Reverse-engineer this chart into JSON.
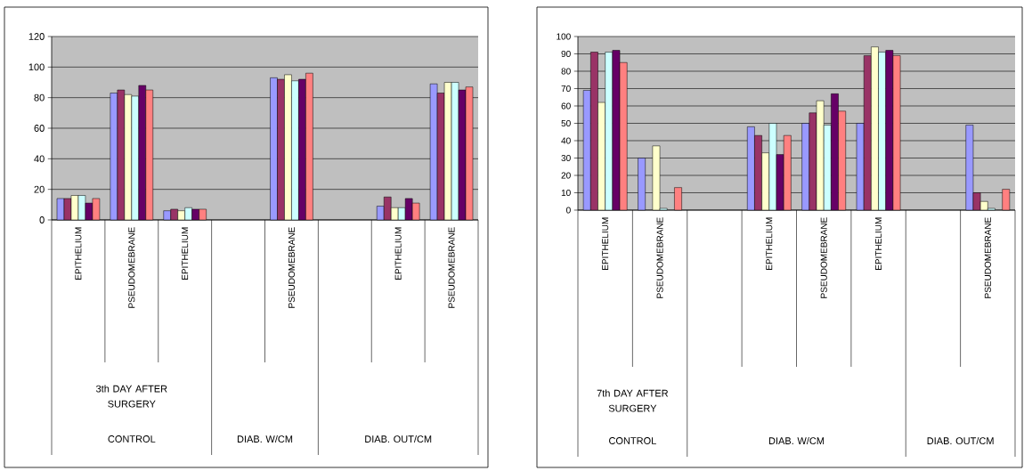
{
  "chart_data": [
    {
      "type": "bar",
      "categories": [
        "EPITHELIUM",
        "PSEUDOMEBRANE",
        "EPITHELIUM",
        null,
        "PSEUDOMEBRANE",
        null,
        "EPITHELIUM",
        "PSEUDOMEBRANE"
      ],
      "series": [
        {
          "color": "#9999ff",
          "values": [
            14,
            83,
            6,
            null,
            93,
            null,
            9,
            89
          ]
        },
        {
          "color": "#993366",
          "values": [
            14,
            85,
            7,
            null,
            92,
            null,
            15,
            83
          ]
        },
        {
          "color": "#ffffcc",
          "values": [
            16,
            82,
            6,
            null,
            95,
            null,
            8,
            90
          ]
        },
        {
          "color": "#ccffff",
          "values": [
            16,
            81,
            8,
            null,
            91,
            null,
            8,
            90
          ]
        },
        {
          "color": "#660066",
          "values": [
            11,
            88,
            7,
            null,
            92,
            null,
            14,
            85
          ]
        },
        {
          "color": "#ff8080",
          "values": [
            14,
            85,
            7,
            null,
            96,
            null,
            11,
            87
          ]
        }
      ],
      "ylim": [
        0,
        120
      ],
      "yticks": [
        0,
        20,
        40,
        60,
        80,
        100,
        120
      ],
      "grid": "y",
      "annotations": [
        "3th DAY AFTER SURGERY",
        "CONTROL",
        "DIAB. W/CM",
        "DIAB. OUT/CM"
      ]
    },
    {
      "type": "bar",
      "categories": [
        "EPITHELIUM",
        "PSEUDOMEBRANE",
        null,
        "EPITHELIUM",
        "PSEUDOMEBRANE",
        "EPITHELIUM",
        null,
        "PSEUDOMEBRANE"
      ],
      "series": [
        {
          "color": "#9999ff",
          "values": [
            69,
            30,
            null,
            48,
            50,
            50,
            null,
            49
          ]
        },
        {
          "color": "#993366",
          "values": [
            91,
            null,
            null,
            43,
            56,
            89,
            null,
            10
          ]
        },
        {
          "color": "#ffffcc",
          "values": [
            62,
            37,
            null,
            33,
            63,
            94,
            null,
            5
          ]
        },
        {
          "color": "#ccffff",
          "values": [
            91,
            1,
            null,
            50,
            49,
            91,
            null,
            1
          ]
        },
        {
          "color": "#660066",
          "values": [
            92,
            null,
            null,
            32,
            67,
            92,
            null,
            null
          ]
        },
        {
          "color": "#ff8080",
          "values": [
            85,
            13,
            null,
            43,
            57,
            89,
            null,
            12
          ]
        }
      ],
      "ylim": [
        0,
        100
      ],
      "yticks": [
        0,
        10,
        20,
        30,
        40,
        50,
        60,
        70,
        80,
        90,
        100
      ],
      "grid": "y",
      "annotations": [
        "7th DAY AFTER SURGERY",
        "CONTROL",
        "DIAB. W/CM",
        "DIAB. OUT/CM"
      ]
    }
  ]
}
